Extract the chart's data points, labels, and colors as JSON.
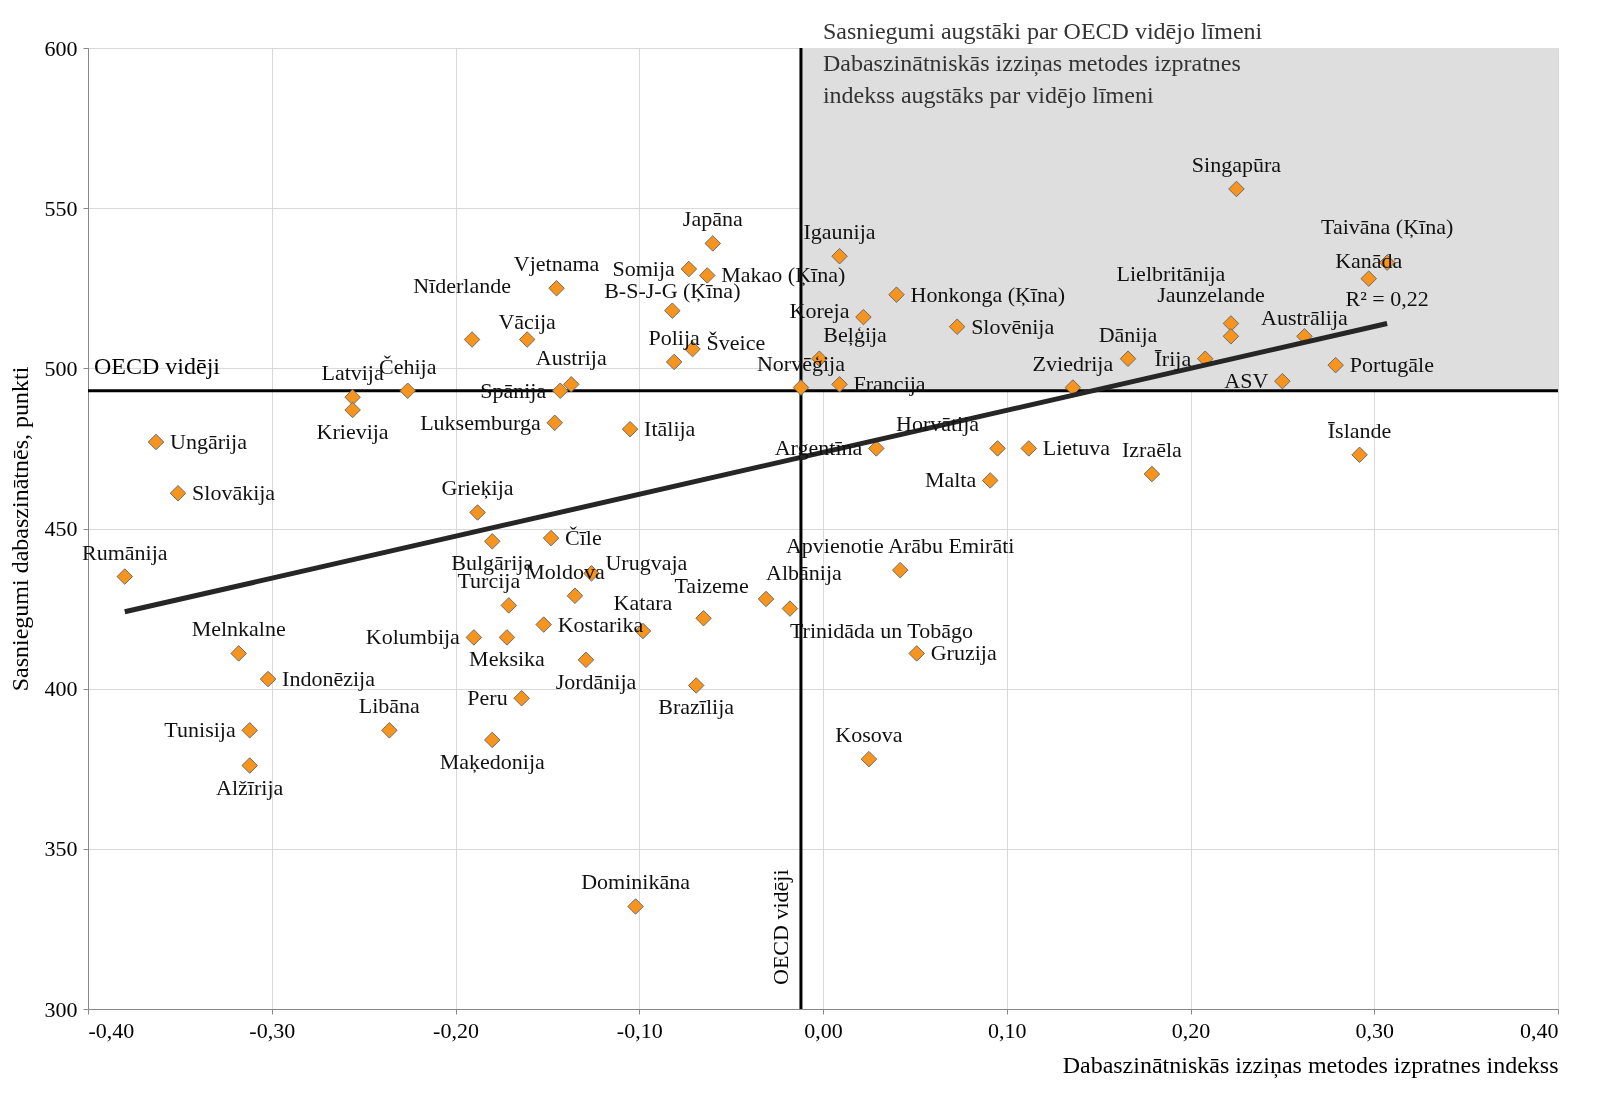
{
  "chart_data": {
    "type": "scatter",
    "xlabel": "Dabaszinātniskās izziņas metodes izpratnes indekss",
    "ylabel": "Sasniegumi dabaszinātnēs, punkti",
    "xlim": [
      -0.4,
      0.4
    ],
    "ylim": [
      300,
      600
    ],
    "xticks": [
      {
        "value": -0.4,
        "label": "-0,40"
      },
      {
        "value": -0.3,
        "label": "-0,30"
      },
      {
        "value": -0.2,
        "label": "-0,20"
      },
      {
        "value": -0.1,
        "label": "-0,10"
      },
      {
        "value": 0,
        "label": "0,00"
      },
      {
        "value": 0.1,
        "label": "0,10"
      },
      {
        "value": 0.2,
        "label": "0,20"
      },
      {
        "value": 0.3,
        "label": "0,30"
      },
      {
        "value": 0.4,
        "label": "0,40"
      }
    ],
    "yticks": [
      300,
      350,
      400,
      450,
      500,
      550,
      600
    ],
    "grid": true,
    "series": [
      {
        "marker": "diamond",
        "color": "#f7941d",
        "x": [
          -0.38,
          -0.363,
          -0.351,
          -0.318,
          -0.302,
          -0.312,
          -0.312,
          -0.256,
          -0.256,
          -0.226,
          -0.236,
          -0.191,
          -0.161,
          -0.146,
          -0.143,
          -0.137,
          -0.145,
          -0.188,
          -0.18,
          -0.148,
          -0.105,
          -0.06,
          -0.073,
          -0.063,
          -0.082,
          -0.071,
          -0.081,
          -0.19,
          -0.172,
          -0.171,
          -0.152,
          -0.135,
          -0.126,
          -0.129,
          -0.098,
          -0.065,
          -0.031,
          -0.018,
          -0.164,
          -0.069,
          -0.18,
          -0.102,
          0.025,
          0.051,
          0.042,
          0.029,
          0.095,
          0.112,
          0.091,
          0.179,
          0.292,
          0.009,
          0.04,
          0.022,
          0.073,
          -0.002,
          -0.012,
          0.009,
          0.136,
          0.166,
          0.208,
          0.222,
          0.222,
          0.262,
          0.25,
          0.279,
          0.297,
          0.307,
          0.225
        ],
        "values": [
          435,
          477,
          461,
          411,
          403,
          387,
          376,
          491,
          487,
          493,
          387,
          509,
          509,
          483,
          493,
          495,
          525,
          455,
          446,
          447,
          481,
          539,
          531,
          529,
          518,
          506,
          502,
          416,
          416,
          426,
          420,
          429,
          436,
          409,
          418,
          422,
          428,
          425,
          397,
          401,
          384,
          332,
          378,
          411,
          437,
          475,
          475,
          475,
          465,
          467,
          473,
          535,
          523,
          516,
          513,
          503,
          494,
          495,
          494,
          503,
          503,
          514,
          510,
          510,
          496,
          501,
          528,
          533,
          556
        ]
      },
      {
        "type": "line",
        "color": "#262626",
        "x": [
          -0.38,
          0.307
        ],
        "values": [
          424,
          514
        ]
      }
    ],
    "ref_lines": [
      {
        "axis": "y",
        "value": 493,
        "label": "OECD vidēji",
        "color": "#000000"
      },
      {
        "axis": "x",
        "value": -0.012,
        "label": "OECD vidēji",
        "color": "#000000"
      }
    ],
    "bands": [
      {
        "axis": "x",
        "from": -0.012,
        "to": 0.4,
        "color": "#dedede",
        "label": "Sasniegumi augstāki par OECD vidējo līmeni\nDabaszinātniskās izziņas metodes izpratnes\nindekss augstāks par vidējo līmeni"
      }
    ],
    "annotations": [
      {
        "text": "Rumānija",
        "x": -0.38,
        "y": 435
      },
      {
        "text": "Ungārija",
        "x": -0.363,
        "y": 477
      },
      {
        "text": "Slovākija",
        "x": -0.351,
        "y": 461
      },
      {
        "text": "Melnkalne",
        "x": -0.318,
        "y": 411
      },
      {
        "text": "Indonēzija",
        "x": -0.302,
        "y": 403
      },
      {
        "text": "Tunisija",
        "x": -0.312,
        "y": 387
      },
      {
        "text": "Alžīrija",
        "x": -0.312,
        "y": 376
      },
      {
        "text": "Latvija",
        "x": -0.256,
        "y": 491
      },
      {
        "text": "Krievija",
        "x": -0.256,
        "y": 487
      },
      {
        "text": "Čehija",
        "x": -0.226,
        "y": 493
      },
      {
        "text": "Libāna",
        "x": -0.236,
        "y": 387
      },
      {
        "text": "Nīderlande",
        "x": -0.191,
        "y": 509
      },
      {
        "text": "Vācija",
        "x": -0.161,
        "y": 509
      },
      {
        "text": "Luksemburga",
        "x": -0.146,
        "y": 483
      },
      {
        "text": "Spānija",
        "x": -0.143,
        "y": 493
      },
      {
        "text": "Austrija",
        "x": -0.137,
        "y": 495
      },
      {
        "text": "Vjetnama",
        "x": -0.145,
        "y": 525
      },
      {
        "text": "Grieķija",
        "x": -0.188,
        "y": 455
      },
      {
        "text": "Bulgārija",
        "x": -0.18,
        "y": 446
      },
      {
        "text": "Čīle",
        "x": -0.148,
        "y": 447
      },
      {
        "text": "Itālija",
        "x": -0.105,
        "y": 481
      },
      {
        "text": "Japāna",
        "x": -0.06,
        "y": 539
      },
      {
        "text": "Somija",
        "x": -0.073,
        "y": 531
      },
      {
        "text": "Makao (Ķīna)",
        "x": -0.063,
        "y": 529
      },
      {
        "text": "B-S-J-G (Ķīna)",
        "x": -0.082,
        "y": 518
      },
      {
        "text": "Šveice",
        "x": -0.071,
        "y": 506
      },
      {
        "text": "Polija",
        "x": -0.081,
        "y": 502
      },
      {
        "text": "Kolumbija",
        "x": -0.19,
        "y": 416
      },
      {
        "text": "Meksika",
        "x": -0.172,
        "y": 416
      },
      {
        "text": "Turcija",
        "x": -0.171,
        "y": 426
      },
      {
        "text": "Kostarika",
        "x": -0.152,
        "y": 420
      },
      {
        "text": "Moldova",
        "x": -0.135,
        "y": 429
      },
      {
        "text": "Urugvaja",
        "x": -0.126,
        "y": 436
      },
      {
        "text": "Jordānija",
        "x": -0.129,
        "y": 409
      },
      {
        "text": "Katara",
        "x": -0.098,
        "y": 418
      },
      {
        "text": "Taizeme",
        "x": -0.065,
        "y": 422
      },
      {
        "text": "Albānija",
        "x": -0.031,
        "y": 428
      },
      {
        "text": "Trinidāda un Tobāgo",
        "x": -0.018,
        "y": 425
      },
      {
        "text": "Peru",
        "x": -0.164,
        "y": 397
      },
      {
        "text": "Brazīlija",
        "x": -0.069,
        "y": 401
      },
      {
        "text": "Maķedonija",
        "x": -0.18,
        "y": 384
      },
      {
        "text": "Dominikāna",
        "x": -0.102,
        "y": 332
      },
      {
        "text": "Kosova",
        "x": 0.025,
        "y": 378
      },
      {
        "text": "Gruzija",
        "x": 0.051,
        "y": 411
      },
      {
        "text": "Apvienotie Arābu Emirāti",
        "x": 0.042,
        "y": 437
      },
      {
        "text": "Argentīna",
        "x": 0.029,
        "y": 475
      },
      {
        "text": "Horvātija",
        "x": 0.095,
        "y": 475
      },
      {
        "text": "Lietuva",
        "x": 0.112,
        "y": 475
      },
      {
        "text": "Malta",
        "x": 0.091,
        "y": 465
      },
      {
        "text": "Izraēla",
        "x": 0.179,
        "y": 467
      },
      {
        "text": "Īslande",
        "x": 0.292,
        "y": 473
      },
      {
        "text": "Igaunija",
        "x": 0.009,
        "y": 535
      },
      {
        "text": "Honkonga (Ķīna)",
        "x": 0.04,
        "y": 523
      },
      {
        "text": "Koreja",
        "x": 0.022,
        "y": 516
      },
      {
        "text": "Slovēnija",
        "x": 0.073,
        "y": 513
      },
      {
        "text": "Beļģija",
        "x": -0.002,
        "y": 503
      },
      {
        "text": "Norvēģija",
        "x": -0.012,
        "y": 494
      },
      {
        "text": "Francija",
        "x": 0.009,
        "y": 495
      },
      {
        "text": "Zviedrija",
        "x": 0.136,
        "y": 494
      },
      {
        "text": "Dānija",
        "x": 0.166,
        "y": 503
      },
      {
        "text": "Īrija",
        "x": 0.208,
        "y": 503
      },
      {
        "text": "Jaunzelande",
        "x": 0.222,
        "y": 514
      },
      {
        "text": "Lielbritānija",
        "x": 0.222,
        "y": 510
      },
      {
        "text": "Austrālija",
        "x": 0.262,
        "y": 510
      },
      {
        "text": "ASV",
        "x": 0.25,
        "y": 496
      },
      {
        "text": "Portugāle",
        "x": 0.279,
        "y": 501
      },
      {
        "text": "Kanāda",
        "x": 0.297,
        "y": 528
      },
      {
        "text": "Taivāna (Ķīna)",
        "x": 0.307,
        "y": 533
      },
      {
        "text": "Singapūra",
        "x": 0.225,
        "y": 556
      },
      {
        "text": "R² = 0,22",
        "x": 0.307,
        "y": 514
      }
    ]
  }
}
